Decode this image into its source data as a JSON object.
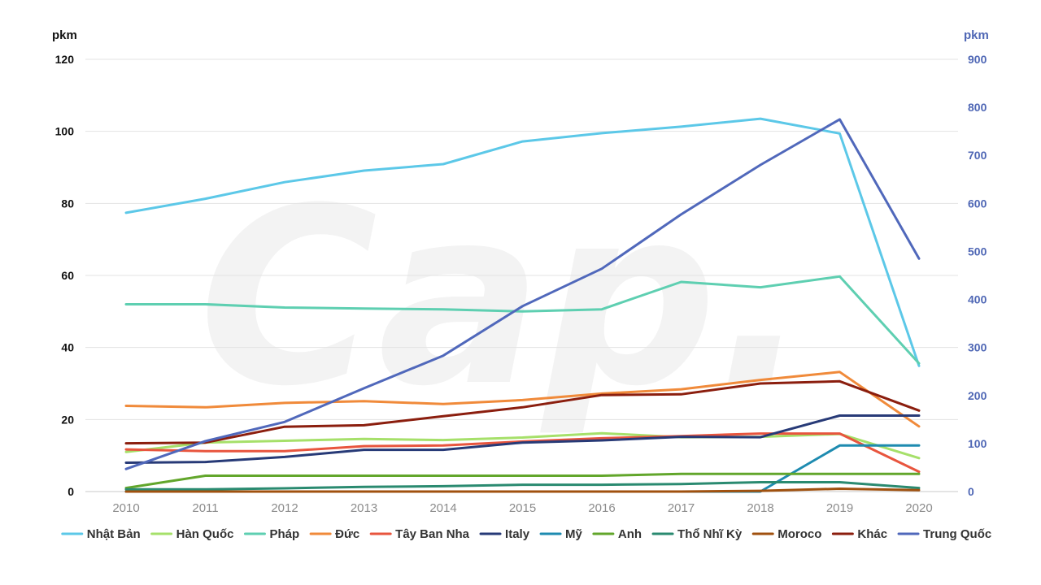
{
  "chart_data": {
    "type": "line",
    "x": [
      "2010",
      "2011",
      "2012",
      "2013",
      "2014",
      "2015",
      "2016",
      "2017",
      "2018",
      "2019",
      "2020"
    ],
    "y_left": {
      "label": "pkm",
      "range": [
        0,
        120
      ],
      "ticks": [
        "0",
        "20",
        "40",
        "60",
        "80",
        "100",
        "120"
      ],
      "color": "#111111"
    },
    "y_right": {
      "label": "pkm",
      "range": [
        0,
        900
      ],
      "ticks": [
        "0",
        "100",
        "200",
        "300",
        "400",
        "500",
        "600",
        "700",
        "800",
        "900"
      ],
      "color": "#4f67b5"
    },
    "grid": true,
    "legend_position": "bottom",
    "series": [
      {
        "name": "Nhật Bản",
        "axis": "left",
        "color": "#5cc8e8",
        "values": [
          77.4,
          81.3,
          85.9,
          89.1,
          90.9,
          97.2,
          99.5,
          101.3,
          103.5,
          99.4,
          34.9
        ]
      },
      {
        "name": "Hàn Quốc",
        "axis": "left",
        "color": "#a6e06a",
        "values": [
          11.0,
          13.6,
          14.1,
          14.6,
          14.3,
          15.0,
          16.2,
          15.1,
          15.2,
          16.0,
          9.3
        ]
      },
      {
        "name": "Pháp",
        "axis": "left",
        "color": "#5ecfb1",
        "values": [
          52.0,
          52.0,
          51.1,
          50.8,
          50.6,
          50.0,
          50.6,
          58.2,
          56.7,
          59.7,
          35.6
        ]
      },
      {
        "name": "Đức",
        "axis": "left",
        "color": "#f08a3a",
        "values": [
          23.8,
          23.4,
          24.6,
          25.1,
          24.3,
          25.4,
          27.2,
          28.4,
          31.0,
          33.2,
          18.1
        ]
      },
      {
        "name": "Tây Ban Nha",
        "axis": "left",
        "color": "#e8553e",
        "values": [
          11.7,
          11.2,
          11.2,
          12.6,
          12.8,
          13.9,
          14.8,
          15.4,
          16.1,
          16.1,
          5.5
        ]
      },
      {
        "name": "Italy",
        "axis": "left",
        "color": "#273a77",
        "values": [
          8.0,
          8.2,
          9.6,
          11.6,
          11.6,
          13.6,
          14.2,
          15.2,
          15.1,
          21.1,
          21.1
        ]
      },
      {
        "name": "Mỹ",
        "axis": "left",
        "color": "#1e8bb0",
        "values": [
          0,
          0,
          0,
          0,
          0,
          0,
          0,
          0,
          0,
          12.8,
          12.8
        ]
      },
      {
        "name": "Anh",
        "axis": "left",
        "color": "#62a62b",
        "values": [
          1.0,
          4.4,
          4.4,
          4.4,
          4.4,
          4.4,
          4.4,
          4.9,
          4.9,
          4.9,
          4.9
        ]
      },
      {
        "name": "Thổ Nhĩ Kỳ",
        "axis": "left",
        "color": "#2a8a70",
        "values": [
          0.6,
          0.6,
          0.9,
          1.3,
          1.5,
          1.9,
          1.9,
          2.1,
          2.6,
          2.6,
          1.0
        ]
      },
      {
        "name": "Moroco",
        "axis": "left",
        "color": "#a0510f",
        "values": [
          0,
          0,
          0,
          0,
          0,
          0,
          0,
          0,
          0.2,
          0.8,
          0.4
        ]
      },
      {
        "name": "Khác",
        "axis": "left",
        "color": "#8b1e0e",
        "values": [
          13.4,
          13.6,
          18.0,
          18.4,
          20.9,
          23.4,
          26.8,
          27.0,
          30.0,
          30.6,
          22.5
        ]
      },
      {
        "name": "Trung Quốc",
        "axis": "right",
        "color": "#5068bb",
        "values": [
          47,
          105,
          145,
          215,
          283,
          386,
          464,
          577,
          680,
          775,
          485
        ]
      }
    ]
  }
}
